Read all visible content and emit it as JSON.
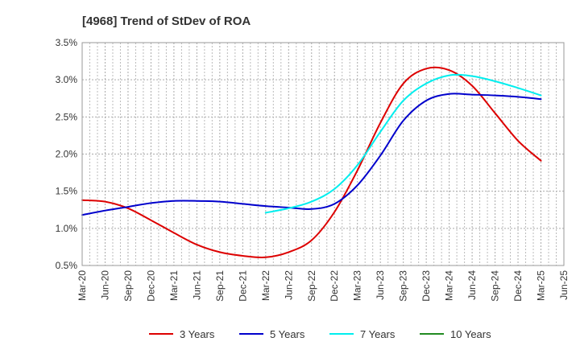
{
  "chart_data": {
    "type": "line",
    "title": "[4968]  Trend of StDev of ROA",
    "xlabel": "",
    "ylabel": "",
    "x_ticks": [
      "Mar-20",
      "Jun-20",
      "Sep-20",
      "Dec-20",
      "Mar-21",
      "Jun-21",
      "Sep-21",
      "Dec-21",
      "Mar-22",
      "Jun-22",
      "Sep-22",
      "Dec-22",
      "Mar-23",
      "Jun-23",
      "Sep-23",
      "Dec-23",
      "Mar-24",
      "Jun-24",
      "Sep-24",
      "Dec-24",
      "Mar-25",
      "Jun-25"
    ],
    "y_ticks": [
      "0.5%",
      "1.0%",
      "1.5%",
      "2.0%",
      "2.5%",
      "3.0%",
      "3.5%"
    ],
    "ylim": [
      0.5,
      3.5
    ],
    "y_unit": "%",
    "grid": true,
    "legend_position": "bottom",
    "series": [
      {
        "name": "3 Years",
        "color": "#dd0000",
        "values": [
          1.38,
          1.36,
          1.27,
          1.11,
          0.94,
          0.78,
          0.68,
          0.63,
          0.61,
          0.68,
          0.84,
          1.22,
          1.78,
          2.42,
          2.95,
          3.15,
          3.13,
          2.92,
          2.55,
          2.18,
          1.91,
          null
        ]
      },
      {
        "name": "5 Years",
        "color": "#0000cc",
        "values": [
          1.18,
          1.24,
          1.29,
          1.34,
          1.37,
          1.37,
          1.36,
          1.33,
          1.3,
          1.28,
          1.26,
          1.33,
          1.58,
          1.98,
          2.45,
          2.72,
          2.81,
          2.8,
          2.79,
          2.77,
          2.74,
          null
        ]
      },
      {
        "name": "7 Years",
        "color": "#00eeee",
        "values": [
          null,
          null,
          null,
          null,
          null,
          null,
          null,
          null,
          1.21,
          1.27,
          1.36,
          1.53,
          1.85,
          2.3,
          2.72,
          2.95,
          3.06,
          3.05,
          2.98,
          2.89,
          2.79,
          null
        ]
      },
      {
        "name": "10 Years",
        "color": "#228B22",
        "values": [
          null,
          null,
          null,
          null,
          null,
          null,
          null,
          null,
          null,
          null,
          null,
          null,
          null,
          null,
          null,
          null,
          null,
          null,
          null,
          null,
          null,
          null
        ]
      }
    ]
  }
}
